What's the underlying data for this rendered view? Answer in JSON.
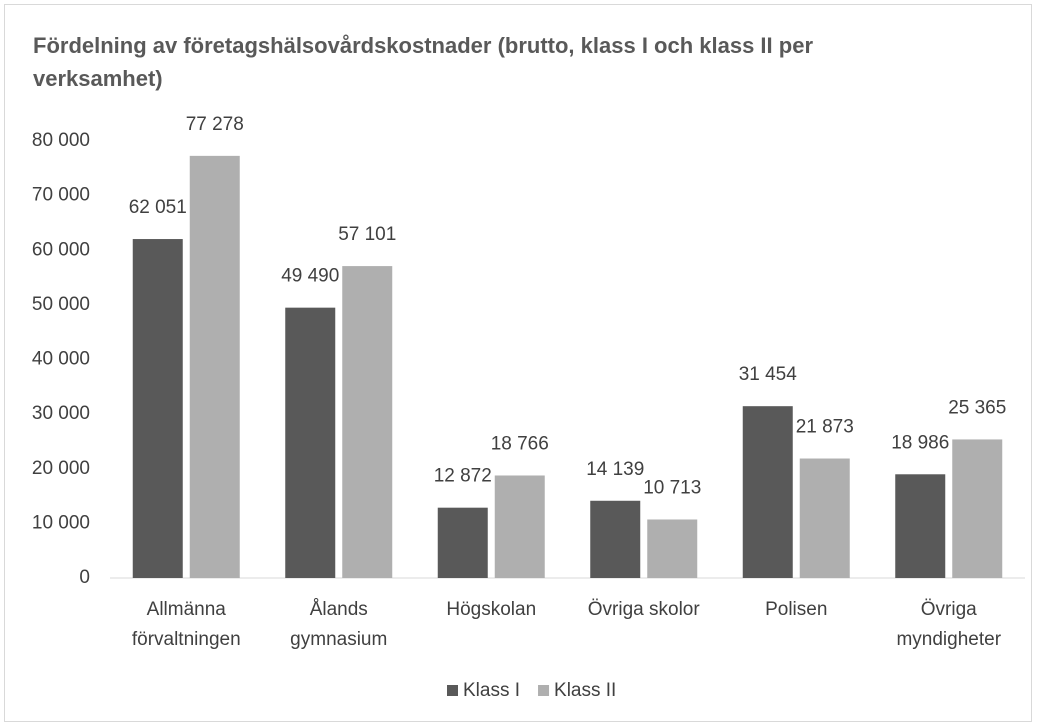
{
  "chart_data": {
    "type": "bar",
    "title": "Fördelning av företagshälsovårdskostnader (brutto, klass I och klass II per verksamhet)",
    "categories": [
      [
        "Allmänna",
        "förvaltningen"
      ],
      [
        "Ålands",
        "gymnasium"
      ],
      [
        "Högskolan"
      ],
      [
        "Övriga skolor"
      ],
      [
        "Polisen"
      ],
      [
        "Övriga",
        "myndigheter"
      ]
    ],
    "series": [
      {
        "name": "Klass I",
        "color": "#595959",
        "values": [
          62051,
          49490,
          12872,
          14139,
          31454,
          18986
        ],
        "value_labels": [
          "62 051",
          "49 490",
          "12 872",
          "14 139",
          "31 454",
          "18 986"
        ]
      },
      {
        "name": "Klass II",
        "color": "#afafaf",
        "values": [
          77278,
          57101,
          18766,
          10713,
          21873,
          25365
        ],
        "value_labels": [
          "77 278",
          "57 101",
          "18 766",
          "10 713",
          "21 873",
          "25 365"
        ]
      }
    ],
    "ylim": [
      0,
      80000
    ],
    "yticks": [
      0,
      {
        "value": 10000,
        "label": "10 000"
      },
      {
        "value": 20000,
        "label": "20 000"
      },
      {
        "value": 30000,
        "label": "30 000"
      },
      {
        "value": 40000,
        "label": "40 000"
      },
      {
        "value": 50000,
        "label": "50 000"
      },
      {
        "value": 60000,
        "label": "60 000"
      },
      {
        "value": 70000,
        "label": "70 000"
      },
      {
        "value": 80000,
        "label": "80 000"
      }
    ],
    "grid": false,
    "legend": "bottom"
  }
}
